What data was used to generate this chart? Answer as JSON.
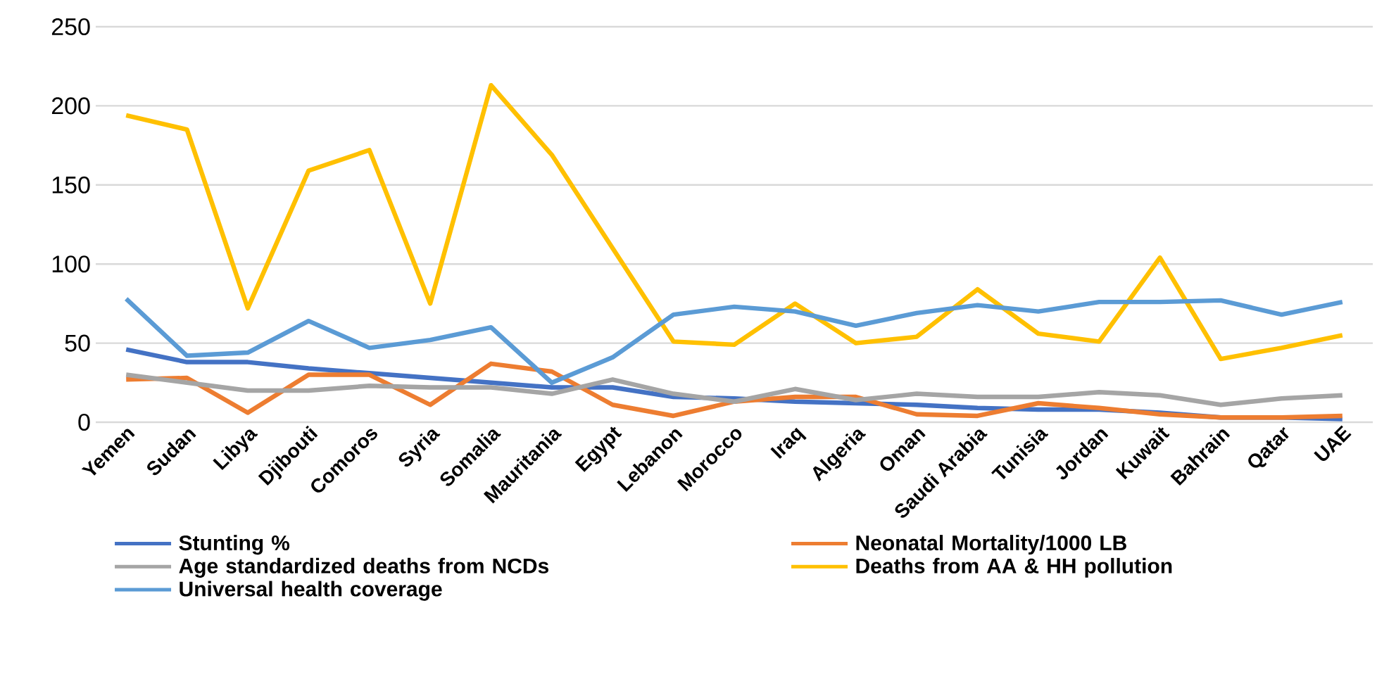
{
  "chart_data": {
    "type": "line",
    "categories": [
      "Yemen",
      "Sudan",
      "Libya",
      "Djibouti",
      "Comoros",
      "Syria",
      "Somalia",
      "Mauritania",
      "Egypt",
      "Lebanon",
      "Morocco",
      "Iraq",
      "Algeria",
      "Oman",
      "Saudi Arabia",
      "Tunisia",
      "Jordan",
      "Kuwait",
      "Bahrain",
      "Qatar",
      "UAE"
    ],
    "series": [
      {
        "name": "Stunting %",
        "color": "#4472c4",
        "values": [
          46,
          38,
          38,
          34,
          31,
          28,
          25,
          22,
          22,
          16,
          15,
          13,
          12,
          11,
          9,
          8,
          8,
          6,
          3,
          3,
          2
        ]
      },
      {
        "name": "Neonatal Mortality/1000 LB",
        "color": "#ed7d31",
        "values": [
          27,
          28,
          6,
          30,
          30,
          11,
          37,
          32,
          11,
          4,
          13,
          16,
          16,
          5,
          4,
          12,
          9,
          5,
          3,
          3,
          4
        ]
      },
      {
        "name": "Age standardized deaths from NCDs",
        "color": "#a5a5a5",
        "values": [
          30,
          25,
          20,
          20,
          23,
          22,
          22,
          18,
          27,
          18,
          13,
          21,
          14,
          18,
          16,
          16,
          19,
          17,
          11,
          15,
          17
        ]
      },
      {
        "name": "Deaths from AA & HH pollution",
        "color": "#ffc000",
        "values": [
          194,
          185,
          72,
          159,
          172,
          75,
          213,
          169,
          110,
          51,
          49,
          75,
          50,
          54,
          84,
          56,
          51,
          104,
          40,
          47,
          55
        ]
      },
      {
        "name": "Universal health coverage",
        "color": "#5b9bd5",
        "values": [
          78,
          42,
          44,
          64,
          47,
          52,
          60,
          25,
          41,
          68,
          73,
          70,
          61,
          69,
          74,
          70,
          76,
          76,
          77,
          68,
          76
        ]
      }
    ],
    "ylim": [
      0,
      250
    ],
    "yticks": [
      0,
      50,
      100,
      150,
      200,
      250
    ],
    "grid": "y",
    "legend": "bottom"
  }
}
